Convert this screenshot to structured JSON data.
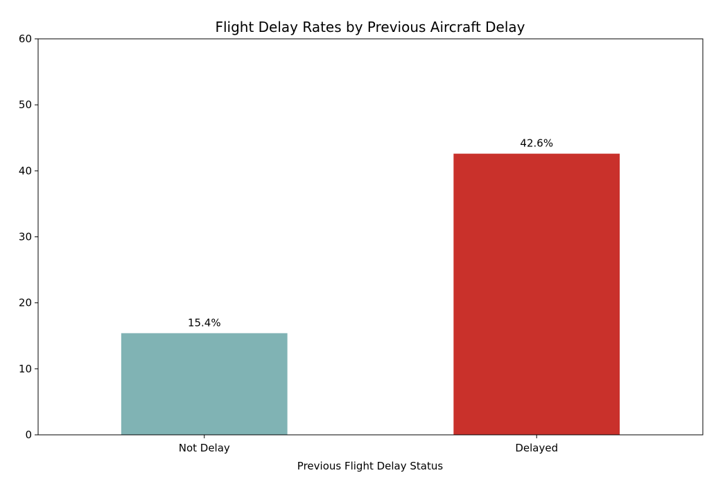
{
  "chart_data": {
    "type": "bar",
    "title": "Flight Delay Rates by Previous Aircraft Delay",
    "xlabel": "Previous Flight Delay Status",
    "ylabel": "",
    "categories": [
      "Not Delay",
      "Delayed"
    ],
    "values": [
      15.4,
      42.6
    ],
    "data_labels": [
      "15.4%",
      "42.6%"
    ],
    "bar_colors": [
      "#80b3b4",
      "#c9312b"
    ],
    "ylim": [
      0,
      60
    ],
    "yticks": [
      0,
      10,
      20,
      30,
      40,
      50,
      60
    ],
    "grid": false,
    "legend": "none"
  }
}
